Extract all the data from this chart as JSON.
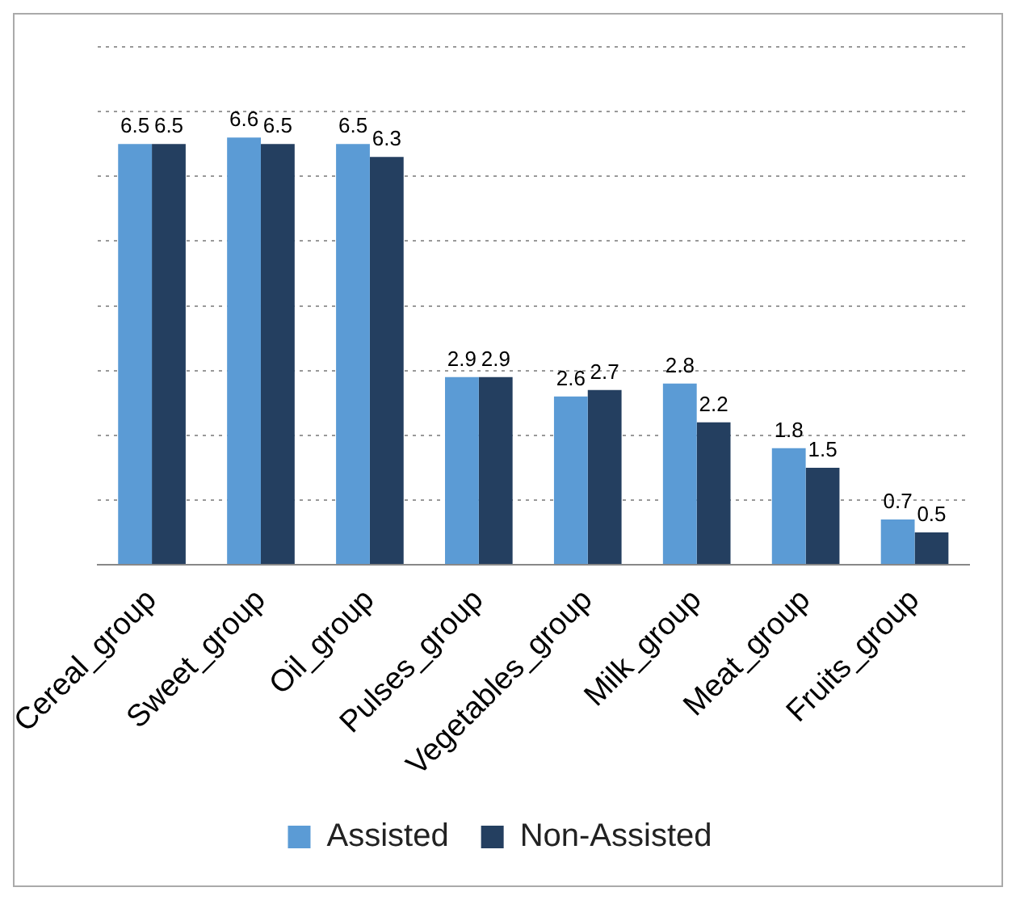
{
  "chart_data": {
    "type": "bar",
    "categories": [
      "Cereal_group",
      "Sweet_group",
      "Oil_group",
      "Pulses_group",
      "Vegetables_group",
      "Milk_group",
      "Meat_group",
      "Fruits_group"
    ],
    "series": [
      {
        "name": "Assisted",
        "color": "#5b9bd5",
        "values": [
          6.5,
          6.6,
          6.5,
          2.9,
          2.6,
          2.8,
          1.8,
          0.7
        ]
      },
      {
        "name": "Non-Assisted",
        "color": "#243f60",
        "values": [
          6.5,
          6.5,
          6.3,
          2.9,
          2.7,
          2.2,
          1.5,
          0.5
        ]
      }
    ],
    "ylim": [
      0,
      8
    ],
    "yticks": [
      {
        "value": 0,
        "label": null
      },
      {
        "value": 1,
        "label": null
      },
      {
        "value": 2,
        "label": null
      },
      {
        "value": 3,
        "label": null
      },
      {
        "value": 4,
        "label": null
      },
      {
        "value": 5,
        "label": null
      },
      {
        "value": 6,
        "label": null
      },
      {
        "value": 7,
        "label": null
      },
      {
        "value": 8,
        "label": null
      }
    ],
    "tick_labels": "x",
    "grid": "y",
    "legend": "bottom",
    "data_labels": true
  }
}
